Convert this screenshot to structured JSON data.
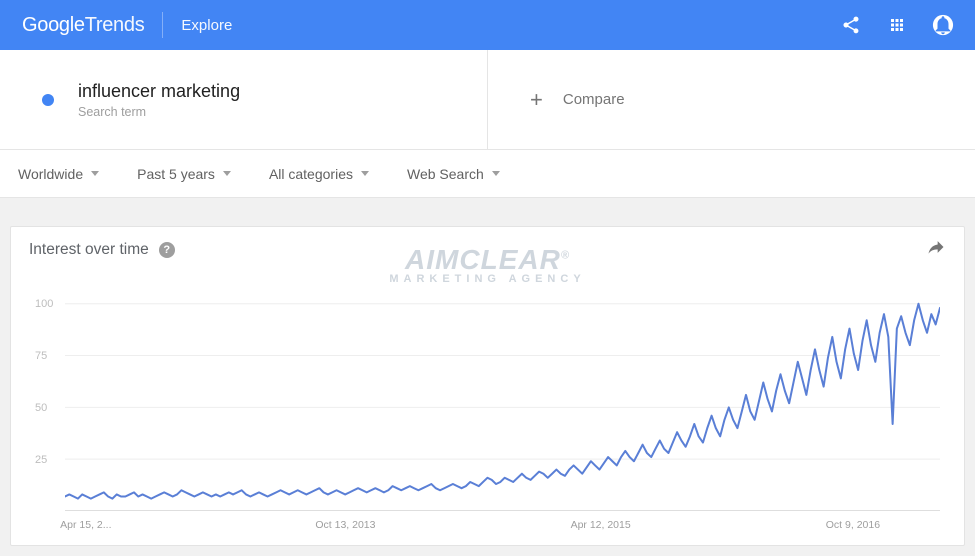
{
  "header": {
    "logo_a": "Google",
    "logo_b": "Trends",
    "explore": "Explore"
  },
  "search": {
    "term": "influencer marketing",
    "subtitle": "Search term",
    "compare_label": "Compare",
    "dot_color": "#4285f4"
  },
  "filters": {
    "region": "Worldwide",
    "time": "Past 5 years",
    "category": "All categories",
    "type": "Web Search"
  },
  "card": {
    "title": "Interest over time"
  },
  "watermark": {
    "line1": "AIMCLEAR",
    "reg": "®",
    "line2": "MARKETING AGENCY"
  },
  "chart": {
    "type": "line",
    "ylim": [
      0,
      110
    ],
    "yticks": [
      25,
      50,
      75,
      100
    ],
    "xticks": [
      {
        "pos": 0.0,
        "label": "Apr 15, 2..."
      },
      {
        "pos": 0.3,
        "label": "Oct 13, 2013"
      },
      {
        "pos": 0.6,
        "label": "Apr 12, 2015"
      },
      {
        "pos": 0.9,
        "label": "Oct 9, 2016"
      }
    ],
    "line_color": "#5a7fd6",
    "line_width": 2,
    "grid_color": "#eeeeee",
    "background_color": "#ffffff",
    "values": [
      7,
      8,
      7,
      6,
      8,
      7,
      6,
      7,
      8,
      9,
      7,
      6,
      8,
      7,
      7,
      8,
      9,
      7,
      8,
      7,
      6,
      7,
      8,
      9,
      8,
      7,
      8,
      10,
      9,
      8,
      7,
      8,
      9,
      8,
      7,
      8,
      7,
      8,
      9,
      8,
      9,
      10,
      8,
      7,
      8,
      9,
      8,
      7,
      8,
      9,
      10,
      9,
      8,
      9,
      10,
      9,
      8,
      9,
      10,
      11,
      9,
      8,
      9,
      10,
      9,
      8,
      9,
      10,
      11,
      10,
      9,
      10,
      11,
      10,
      9,
      10,
      12,
      11,
      10,
      11,
      12,
      11,
      10,
      11,
      12,
      13,
      11,
      10,
      11,
      12,
      13,
      12,
      11,
      12,
      14,
      13,
      12,
      14,
      16,
      15,
      13,
      14,
      16,
      15,
      14,
      16,
      18,
      16,
      15,
      17,
      19,
      18,
      16,
      18,
      20,
      18,
      17,
      20,
      22,
      20,
      18,
      21,
      24,
      22,
      20,
      23,
      26,
      24,
      22,
      26,
      29,
      26,
      24,
      28,
      32,
      28,
      26,
      30,
      34,
      30,
      28,
      33,
      38,
      34,
      31,
      36,
      42,
      36,
      33,
      40,
      46,
      40,
      36,
      44,
      50,
      44,
      40,
      48,
      56,
      48,
      44,
      53,
      62,
      54,
      48,
      58,
      66,
      58,
      52,
      62,
      72,
      64,
      56,
      68,
      78,
      68,
      60,
      74,
      84,
      72,
      64,
      78,
      88,
      76,
      68,
      82,
      92,
      80,
      72,
      86,
      95,
      84,
      42,
      88,
      94,
      86,
      80,
      92,
      100,
      92,
      86,
      95,
      90,
      98
    ]
  }
}
